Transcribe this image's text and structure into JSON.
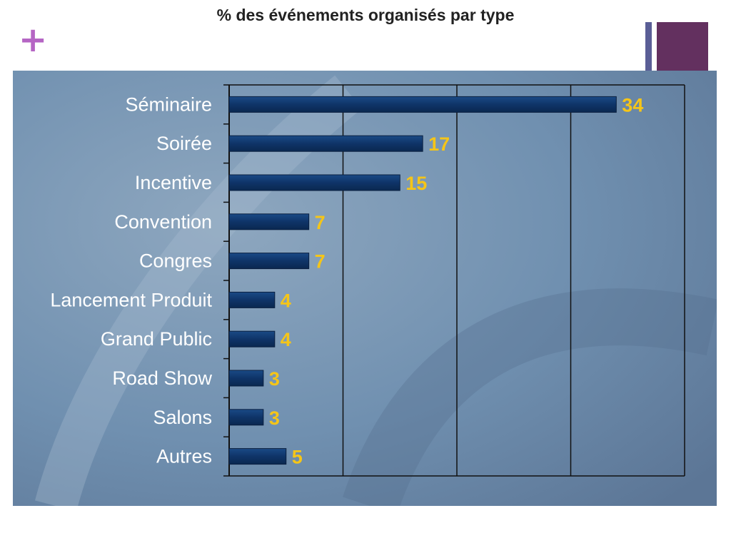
{
  "slide": {
    "title": "% des événements organisés par type",
    "plus_glyph": "+",
    "icon": "plus-icon"
  },
  "colors": {
    "plus": "#b565c4",
    "accent_thin": "#5a5e96",
    "accent_block": "#63305f",
    "bar": "#0f3468",
    "bar_border": "#0a2040",
    "value_label": "#f5c518",
    "panel_bg": "#6b8aaa",
    "grid": "#111111"
  },
  "chart_data": {
    "type": "bar",
    "orientation": "horizontal",
    "title": "",
    "xlabel": "",
    "ylabel": "",
    "categories": [
      "Séminaire",
      "Soirée",
      "Incentive",
      "Convention",
      "Congres",
      "Lancement Produit",
      "Grand Public",
      "Road Show",
      "Salons",
      "Autres"
    ],
    "values": [
      34,
      17,
      15,
      7,
      7,
      4,
      4,
      3,
      3,
      5
    ],
    "value_labels": [
      "34",
      "17",
      "15",
      "7",
      "7",
      "4",
      "4",
      "3",
      "3",
      "5"
    ],
    "xlim": [
      0,
      40
    ],
    "vertical_gridlines_at": [
      10,
      20,
      30,
      40
    ],
    "show_x_tick_labels": false,
    "legend": "none"
  }
}
